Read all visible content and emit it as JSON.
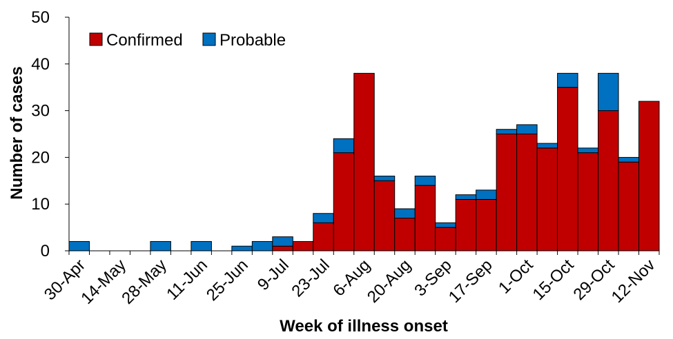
{
  "chart_data": {
    "type": "bar",
    "stacked": true,
    "xlabel": "Week of illness onset",
    "ylabel": "Number of cases",
    "ylim": [
      0,
      50
    ],
    "yticks": [
      0,
      10,
      20,
      30,
      40,
      50
    ],
    "grid": false,
    "legend_position": "top-left",
    "categories": [
      "30-Apr",
      "7-May",
      "14-May",
      "21-May",
      "28-May",
      "4-Jun",
      "11-Jun",
      "18-Jun",
      "25-Jun",
      "2-Jul",
      "9-Jul",
      "16-Jul",
      "23-Jul",
      "30-Jul",
      "6-Aug",
      "13-Aug",
      "20-Aug",
      "27-Aug",
      "3-Sep",
      "10-Sep",
      "17-Sep",
      "24-Sep",
      "1-Oct",
      "8-Oct",
      "15-Oct",
      "22-Oct",
      "29-Oct",
      "5-Nov",
      "12-Nov"
    ],
    "tick_labels": [
      "30-Apr",
      "14-May",
      "28-May",
      "11-Jun",
      "25-Jun",
      "9-Jul",
      "23-Jul",
      "6-Aug",
      "20-Aug",
      "3-Sep",
      "17-Sep",
      "1-Oct",
      "15-Oct",
      "29-Oct",
      "12-Nov"
    ],
    "series": [
      {
        "name": "Confirmed",
        "color": "#C00000",
        "values": [
          0,
          0,
          0,
          0,
          0,
          0,
          0,
          0,
          0,
          0,
          1,
          2,
          6,
          21,
          38,
          15,
          7,
          14,
          5,
          11,
          11,
          25,
          25,
          22,
          35,
          21,
          30,
          19,
          32
        ]
      },
      {
        "name": "Probable",
        "color": "#0070C0",
        "values": [
          2,
          0,
          0,
          0,
          2,
          0,
          2,
          0,
          1,
          2,
          2,
          0,
          2,
          3,
          0,
          1,
          2,
          2,
          1,
          1,
          2,
          1,
          2,
          1,
          3,
          1,
          8,
          1,
          0
        ]
      }
    ]
  }
}
